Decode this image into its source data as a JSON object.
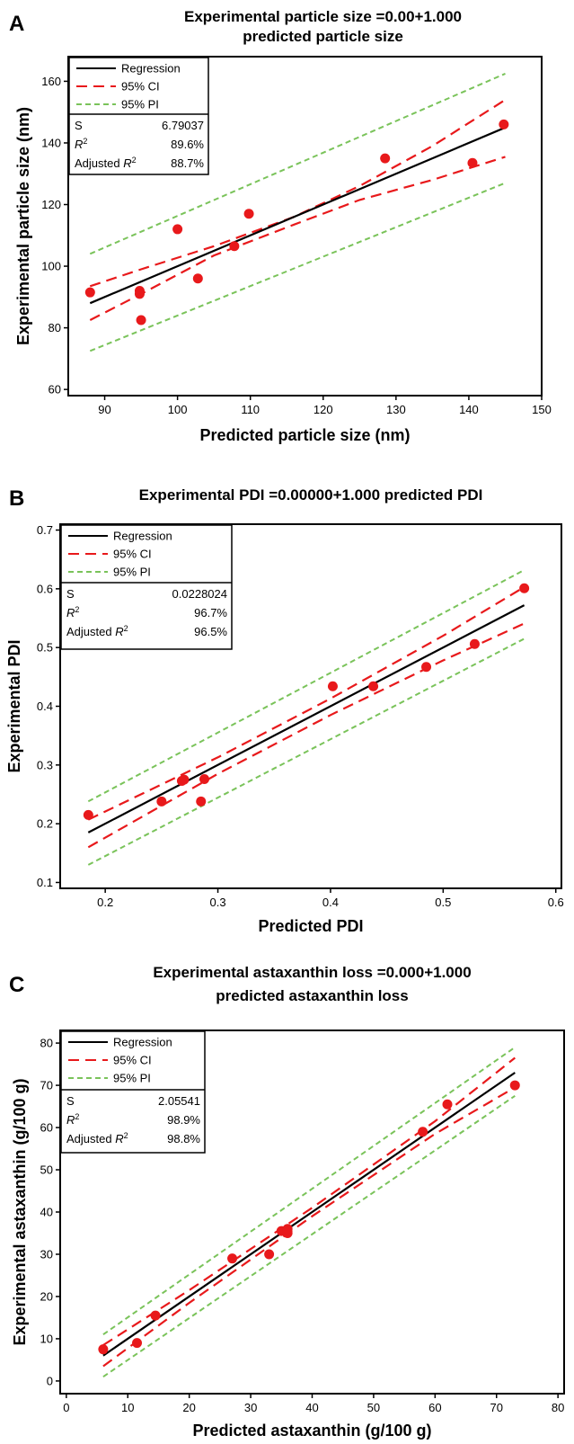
{
  "figure": {
    "panels": [
      {
        "label": "A",
        "title_lines": [
          "Experimental particle size =0.00+1.000",
          "predicted particle size"
        ],
        "legend": {
          "regression": "Regression",
          "ci": "95% CI",
          "pi": "95% PI"
        },
        "stats": [
          {
            "name": "S",
            "value": "6.79037"
          },
          {
            "name": "R²",
            "value": "89.6%"
          },
          {
            "name": "Adjusted R²",
            "value": "88.7%"
          }
        ]
      },
      {
        "label": "B",
        "title_lines": [
          "Experimental PDI =0.00000+1.000 predicted PDI"
        ],
        "legend": {
          "regression": "Regression",
          "ci": "95% CI",
          "pi": "95% PI"
        },
        "stats": [
          {
            "name": "S",
            "value": "0.0228024"
          },
          {
            "name": "R²",
            "value": "96.7%"
          },
          {
            "name": "Adjusted R²",
            "value": "96.5%"
          }
        ]
      },
      {
        "label": "C",
        "title_lines": [
          "Experimental astaxanthin loss =0.000+1.000",
          "predicted astaxanthin loss"
        ],
        "legend": {
          "regression": "Regression",
          "ci": "95% CI",
          "pi": "95% PI"
        },
        "stats": [
          {
            "name": "S",
            "value": "2.05541"
          },
          {
            "name": "R²",
            "value": "98.9%"
          },
          {
            "name": "Adjusted R²",
            "value": "98.8%"
          }
        ]
      }
    ]
  },
  "colors": {
    "regression": "#000000",
    "ci": "#e8191b",
    "pi": "#7ac35a",
    "points": "#e8191b"
  },
  "chart_data": [
    {
      "type": "scatter",
      "title": "Experimental particle size =0.00+1.000 predicted particle size",
      "xlabel": "Predicted particle size (nm)",
      "ylabel": "Experimental particle size (nm)",
      "xlim": [
        85,
        150
      ],
      "ylim": [
        58,
        168
      ],
      "xticks": [
        90,
        100,
        110,
        120,
        130,
        140,
        150
      ],
      "yticks": [
        60,
        80,
        100,
        120,
        140,
        160
      ],
      "grid": false,
      "legend_position": "top-left",
      "points": {
        "x": [
          88,
          94.8,
          94.8,
          95.0,
          100.0,
          102.8,
          107.8,
          109.8,
          128.5,
          140.5,
          144.8
        ],
        "y": [
          91.5,
          92.0,
          91.0,
          82.5,
          112.0,
          96.0,
          106.5,
          117.0,
          135.0,
          133.5,
          146.0
        ]
      },
      "regression": {
        "x": [
          88,
          145
        ],
        "y": [
          88,
          145
        ]
      },
      "ci_upper": {
        "x": [
          88,
          95,
          105,
          116,
          125,
          135,
          145
        ],
        "y": [
          93.5,
          99.0,
          106.5,
          116.0,
          126.0,
          139.0,
          154.0
        ]
      },
      "ci_lower": {
        "x": [
          88,
          95,
          105,
          116,
          125,
          135,
          145
        ],
        "y": [
          82.5,
          91.0,
          103.5,
          113.5,
          121.5,
          128.0,
          135.5
        ]
      },
      "pi_upper": {
        "x": [
          88,
          145
        ],
        "y": [
          104,
          162.5
        ]
      },
      "pi_lower": {
        "x": [
          88,
          145
        ],
        "y": [
          72.5,
          127
        ]
      }
    },
    {
      "type": "scatter",
      "title": "Experimental PDI =0.00000+1.000 predicted PDI",
      "xlabel": "Predicted PDI",
      "ylabel": "Experimental PDI",
      "xlim": [
        0.16,
        0.605
      ],
      "ylim": [
        0.09,
        0.71
      ],
      "xticks": [
        0.2,
        0.3,
        0.4,
        0.5,
        0.6
      ],
      "yticks": [
        0.1,
        0.2,
        0.3,
        0.4,
        0.5,
        0.6,
        0.7
      ],
      "xtick_labels": [
        "0.2",
        "0.3",
        "0.4",
        "0.5",
        "0.6"
      ],
      "ytick_labels": [
        "0.1",
        "0.2",
        "0.3",
        "0.4",
        "0.5",
        "0.6",
        "0.7"
      ],
      "grid": false,
      "legend_position": "top-left",
      "points": {
        "x": [
          0.185,
          0.25,
          0.27,
          0.268,
          0.285,
          0.288,
          0.402,
          0.438,
          0.485,
          0.528,
          0.572
        ],
        "y": [
          0.215,
          0.238,
          0.275,
          0.273,
          0.238,
          0.276,
          0.434,
          0.434,
          0.467,
          0.506,
          0.601
        ]
      },
      "regression": {
        "x": [
          0.185,
          0.572
        ],
        "y": [
          0.185,
          0.572
        ]
      },
      "ci_upper": {
        "x": [
          0.185,
          0.3,
          0.4,
          0.5,
          0.572
        ],
        "y": [
          0.207,
          0.313,
          0.413,
          0.52,
          0.603
        ]
      },
      "ci_lower": {
        "x": [
          0.185,
          0.3,
          0.4,
          0.5,
          0.572
        ],
        "y": [
          0.16,
          0.285,
          0.385,
          0.478,
          0.541
        ]
      },
      "pi_upper": {
        "x": [
          0.185,
          0.572
        ],
        "y": [
          0.238,
          0.632
        ]
      },
      "pi_lower": {
        "x": [
          0.185,
          0.572
        ],
        "y": [
          0.13,
          0.515
        ]
      }
    },
    {
      "type": "scatter",
      "title": "Experimental astaxanthin loss =0.000+1.000 predicted astaxanthin loss",
      "xlabel": "Predicted astaxanthin  (g/100 g)",
      "ylabel": "Experimental astaxanthin  (g/100 g)",
      "xlim": [
        -1,
        81
      ],
      "ylim": [
        -3,
        83
      ],
      "xticks": [
        0,
        10,
        20,
        30,
        40,
        50,
        60,
        70,
        80
      ],
      "yticks": [
        0,
        10,
        20,
        30,
        40,
        50,
        60,
        70,
        80
      ],
      "grid": false,
      "legend_position": "top-left",
      "points": {
        "x": [
          6.0,
          11.5,
          14.5,
          27.0,
          33.0,
          35.0,
          36.0,
          36.0,
          58.0,
          62.0,
          73.0
        ],
        "y": [
          7.5,
          9.0,
          15.5,
          29.0,
          30.0,
          35.5,
          35.0,
          36.0,
          59.0,
          65.5,
          70.0
        ]
      },
      "regression": {
        "x": [
          6,
          73
        ],
        "y": [
          6,
          73
        ]
      },
      "ci_upper": {
        "x": [
          6,
          20,
          40,
          60,
          73
        ],
        "y": [
          8.5,
          21.5,
          41.0,
          61.5,
          76.5
        ]
      },
      "ci_lower": {
        "x": [
          6,
          20,
          40,
          60,
          73
        ],
        "y": [
          3.5,
          18.5,
          39.0,
          58.5,
          69.5
        ]
      },
      "pi_upper": {
        "x": [
          6,
          73
        ],
        "y": [
          11,
          79
        ]
      },
      "pi_lower": {
        "x": [
          6,
          73
        ],
        "y": [
          1,
          67.5
        ]
      }
    }
  ]
}
